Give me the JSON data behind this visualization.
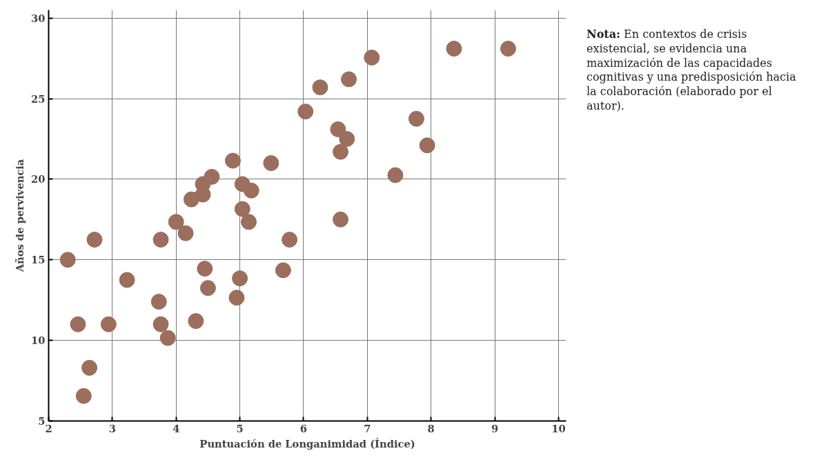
{
  "chart_data": {
    "type": "scatter",
    "xlabel": "Puntuación de Longanimidad (Índice)",
    "ylabel": "Años de pervivencia",
    "annotations": [
      "Nota: En contextos de crisis existencial, se evidencia una maximización de las capacidades cognitivas y una predisposición hacia la colaboración (elaborado por el autor)."
    ],
    "series": [
      {
        "color": "#9b6e5e",
        "x": [
          2.3,
          2.46,
          2.72,
          2.64,
          2.55,
          2.94,
          3.23,
          3.73,
          3.76,
          3.76,
          3.87,
          4.0,
          4.15,
          4.24,
          4.31,
          4.42,
          4.42,
          4.45,
          4.5,
          4.56,
          4.89,
          4.95,
          5.0,
          5.04,
          5.04,
          5.14,
          5.18,
          5.49,
          5.68,
          5.78,
          6.03,
          6.26,
          6.54,
          6.58,
          6.58,
          6.68,
          6.71,
          7.07,
          7.44,
          7.77,
          7.94,
          8.36,
          9.21
        ],
        "values": [
          15.0,
          11.0,
          16.25,
          8.3,
          6.55,
          11.0,
          13.75,
          12.4,
          16.25,
          11.0,
          10.15,
          17.35,
          16.65,
          18.75,
          11.2,
          19.7,
          19.05,
          14.45,
          13.25,
          20.15,
          21.15,
          12.65,
          13.85,
          19.7,
          18.15,
          17.35,
          19.3,
          21.0,
          14.35,
          16.25,
          24.2,
          25.7,
          23.1,
          21.7,
          17.5,
          22.5,
          26.2,
          27.55,
          20.25,
          23.75,
          22.1,
          28.1,
          28.1
        ]
      }
    ],
    "xlim": [
      2,
      10.12
    ],
    "ylim": [
      5,
      30.5
    ],
    "xticks": [
      2,
      3,
      4,
      5,
      6,
      7,
      8,
      9,
      10
    ],
    "yticks": [
      5,
      10,
      15,
      20,
      25,
      30
    ],
    "grid": true,
    "marker": "circle"
  }
}
